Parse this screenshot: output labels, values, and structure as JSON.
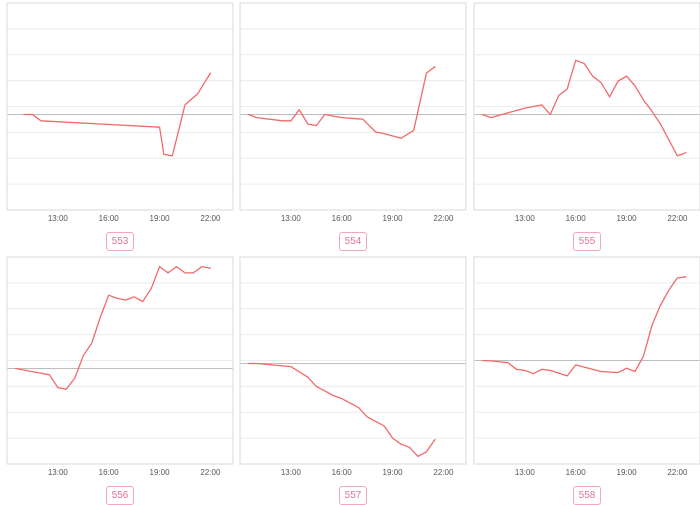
{
  "colors": {
    "line": "#f06a6a",
    "badge_text": "#e0739a",
    "badge_border": "#f0a7c0"
  },
  "chart_data": [
    {
      "type": "line",
      "label": "553",
      "x": [
        "11:00",
        "11:30",
        "12:00",
        "19:00",
        "19:15",
        "19:45",
        "20:30",
        "21:15",
        "22:00"
      ],
      "y": [
        0,
        0,
        -0.2,
        -0.4,
        -1.25,
        -1.3,
        0.3,
        0.65,
        1.3
      ],
      "ylim": [
        -3,
        3.5
      ],
      "xticks": [
        "13:00",
        "16:00",
        "19:00",
        "22:00"
      ]
    },
    {
      "type": "line",
      "label": "554",
      "x": [
        "10:30",
        "11:00",
        "12:30",
        "13:00",
        "13:30",
        "14:00",
        "14:30",
        "15:00",
        "16:00",
        "17:15",
        "18:00",
        "18:30",
        "19:30",
        "20:15",
        "21:00",
        "21:30"
      ],
      "y": [
        0,
        -0.1,
        -0.2,
        -0.2,
        0.15,
        -0.3,
        -0.35,
        0,
        -0.1,
        -0.15,
        -0.55,
        -0.6,
        -0.75,
        -0.5,
        1.3,
        1.5
      ],
      "ylim": [
        -3,
        3.5
      ],
      "xticks": [
        "13:00",
        "16:00",
        "19:00",
        "22:00"
      ]
    },
    {
      "type": "line",
      "label": "555",
      "x": [
        "10:30",
        "11:00",
        "13:00",
        "14:00",
        "14:30",
        "15:00",
        "15:30",
        "16:00",
        "16:30",
        "17:00",
        "17:30",
        "18:00",
        "18:30",
        "19:00",
        "19:30",
        "20:00",
        "20:30",
        "21:00",
        "22:00",
        "22:30"
      ],
      "y": [
        0,
        -0.1,
        0.2,
        0.3,
        0,
        0.6,
        0.8,
        1.7,
        1.6,
        1.2,
        1.0,
        0.55,
        1.05,
        1.2,
        0.9,
        0.45,
        0.1,
        -0.3,
        -1.3,
        -1.2
      ],
      "ylim": [
        -3,
        3.5
      ],
      "xticks": [
        "13:00",
        "16:00",
        "19:00",
        "22:00"
      ]
    },
    {
      "type": "line",
      "label": "556",
      "x": [
        "10:30",
        "11:30",
        "12:30",
        "13:00",
        "13:30",
        "14:00",
        "14:30",
        "15:00",
        "15:30",
        "16:00",
        "16:30",
        "17:00",
        "17:30",
        "18:00",
        "18:30",
        "19:00",
        "19:30",
        "20:00",
        "20:30",
        "21:00",
        "21:30",
        "22:00"
      ],
      "y": [
        0,
        -0.1,
        -0.2,
        -0.6,
        -0.65,
        -0.3,
        0.4,
        0.8,
        1.6,
        2.3,
        2.2,
        2.15,
        2.25,
        2.1,
        2.5,
        3.2,
        3.0,
        3.2,
        3.0,
        3.0,
        3.2,
        3.15
      ],
      "ylim": [
        -3,
        3.5
      ],
      "xticks": [
        "13:00",
        "16:00",
        "19:00",
        "22:00"
      ]
    },
    {
      "type": "line",
      "label": "557",
      "x": [
        "10:30",
        "11:00",
        "13:00",
        "14:00",
        "14:30",
        "15:00",
        "15:30",
        "16:00",
        "16:30",
        "17:00",
        "17:30",
        "18:00",
        "18:30",
        "19:00",
        "19:30",
        "20:00",
        "20:30",
        "21:00",
        "21:30"
      ],
      "y": [
        0,
        0,
        -0.1,
        -0.45,
        -0.75,
        -0.9,
        -1.05,
        -1.15,
        -1.3,
        -1.45,
        -1.75,
        -1.9,
        -2.05,
        -2.45,
        -2.65,
        -2.75,
        -3.05,
        -2.9,
        -2.5
      ],
      "ylim": [
        -3.3,
        3.5
      ],
      "xticks": [
        "13:00",
        "16:00",
        "19:00",
        "22:00"
      ]
    },
    {
      "type": "line",
      "label": "558",
      "x": [
        "10:30",
        "11:00",
        "12:00",
        "12:30",
        "13:00",
        "13:30",
        "14:00",
        "14:30",
        "15:30",
        "16:00",
        "16:30",
        "17:30",
        "18:30",
        "19:00",
        "19:30",
        "20:00",
        "20:30",
        "21:00",
        "21:30",
        "22:00",
        "22:30"
      ],
      "y": [
        0,
        -0.02,
        -0.1,
        -0.4,
        -0.45,
        -0.6,
        -0.4,
        -0.45,
        -0.7,
        -0.2,
        -0.3,
        -0.5,
        -0.55,
        -0.35,
        -0.5,
        0.2,
        1.6,
        2.5,
        3.2,
        3.75,
        3.8
      ],
      "ylim": [
        -4.7,
        4.7
      ],
      "xticks": [
        "13:00",
        "16:00",
        "19:00",
        "22:00"
      ]
    }
  ]
}
